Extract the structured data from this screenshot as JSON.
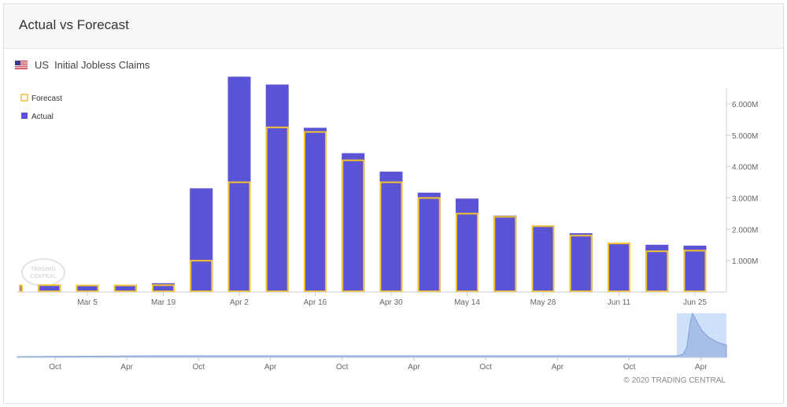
{
  "header": {
    "title": "Actual vs Forecast"
  },
  "instrument": {
    "flag_icon": "us-flag-icon",
    "country": "US",
    "name": "Initial Jobless Claims"
  },
  "copyright": "© 2020 TRADING CENTRAL",
  "colors": {
    "actual": "#5b53d6",
    "forecast": "#f2c230",
    "navigator_fill": "#a7bfe8",
    "selection": "#c7dcf8",
    "axis": "#cccccc"
  },
  "chart_data": {
    "type": "bar",
    "ylim": [
      0,
      6500
    ],
    "yunit": "K",
    "ytick_labels": [
      "1.000M",
      "2.000M",
      "3.000M",
      "4.000M",
      "5.000M",
      "6.000M"
    ],
    "ytick_values": [
      1000,
      2000,
      3000,
      4000,
      5000,
      6000
    ],
    "xtick_labels": [
      "Mar 5",
      "Mar 19",
      "Apr 2",
      "Apr 16",
      "Apr 30",
      "May 14",
      "May 28",
      "Jun 11",
      "Jun 25"
    ],
    "xtick_dates": [
      "2020-03-05",
      "2020-03-19",
      "2020-04-02",
      "2020-04-16",
      "2020-04-30",
      "2020-05-14",
      "2020-05-28",
      "2020-06-11",
      "2020-06-25"
    ],
    "legend": [
      "Forecast",
      "Actual"
    ],
    "legend_position": "top-left",
    "categories": [
      "2020-02-20",
      "2020-02-27",
      "2020-03-05",
      "2020-03-12",
      "2020-03-19",
      "2020-03-26",
      "2020-04-02",
      "2020-04-09",
      "2020-04-16",
      "2020-04-23",
      "2020-04-30",
      "2020-05-07",
      "2020-05-14",
      "2020-05-21",
      "2020-05-28",
      "2020-06-04",
      "2020-06-11",
      "2020-06-18",
      "2020-06-25"
    ],
    "series": [
      {
        "name": "Actual",
        "values": [
          210,
          219,
          211,
          211,
          282,
          3307,
          6867,
          6615,
          5237,
          4427,
          3839,
          3169,
          2981,
          2438,
          2123,
          1877,
          1542,
          1508,
          1480
        ]
      },
      {
        "name": "Forecast",
        "values": [
          210,
          219,
          211,
          211,
          220,
          1000,
          3500,
          5250,
          5105,
          4200,
          3500,
          3000,
          2500,
          2400,
          2100,
          1800,
          1550,
          1300,
          1320
        ]
      }
    ],
    "navigator": {
      "xtick_labels": [
        "Oct",
        "Apr",
        "Oct",
        "Apr",
        "Oct",
        "Apr",
        "Oct",
        "Apr",
        "Oct",
        "Apr"
      ]
    }
  }
}
